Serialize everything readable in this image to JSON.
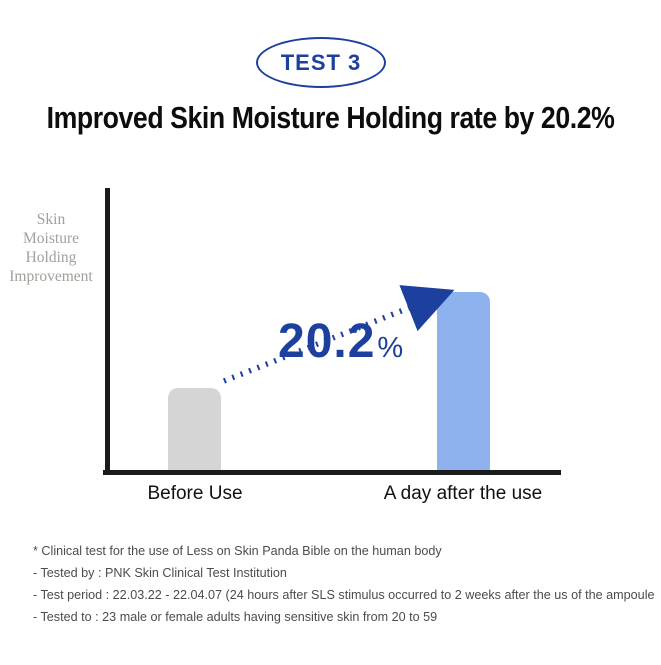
{
  "badge": {
    "label": "TEST 3"
  },
  "title": "Improved Skin Moisture Holding rate by 20.2%",
  "colors": {
    "accent": "#1d3f9e",
    "bar_before": "#d5d5d5",
    "bar_after": "#8db2ee",
    "axis": "#1b1b1b",
    "ylabel_gray": "#a2a09a"
  },
  "chart_data": {
    "type": "bar",
    "categories": [
      "Before Use",
      "A day after the use"
    ],
    "values": [
      29,
      63
    ],
    "value_note": "bars are unlabeled; values are relative heights on a 0-100 visual scale",
    "title": "Improved Skin Moisture Holding rate by 20.2%",
    "xlabel": "",
    "ylabel": "Skin Moisture Holding Improvement",
    "ylabel_lines": [
      "Skin",
      "Moisture",
      "Holding",
      "Improvement"
    ],
    "annotation_value": "20.2",
    "annotation_unit": "%",
    "legend": "none",
    "grid": "off",
    "bar_colors": [
      "#d5d5d5",
      "#8db2ee"
    ]
  },
  "footnotes": [
    "* Clinical test for the use of Less on Skin Panda Bible on the human body",
    "- Tested by : PNK Skin Clinical Test Institution",
    "- Test period : 22.03.22 - 22.04.07 (24 hours after SLS stimulus occurred to 2 weeks after the us of the ampoule",
    "- Tested to : 23 male or female adults having sensitive skin from 20 to 59"
  ]
}
